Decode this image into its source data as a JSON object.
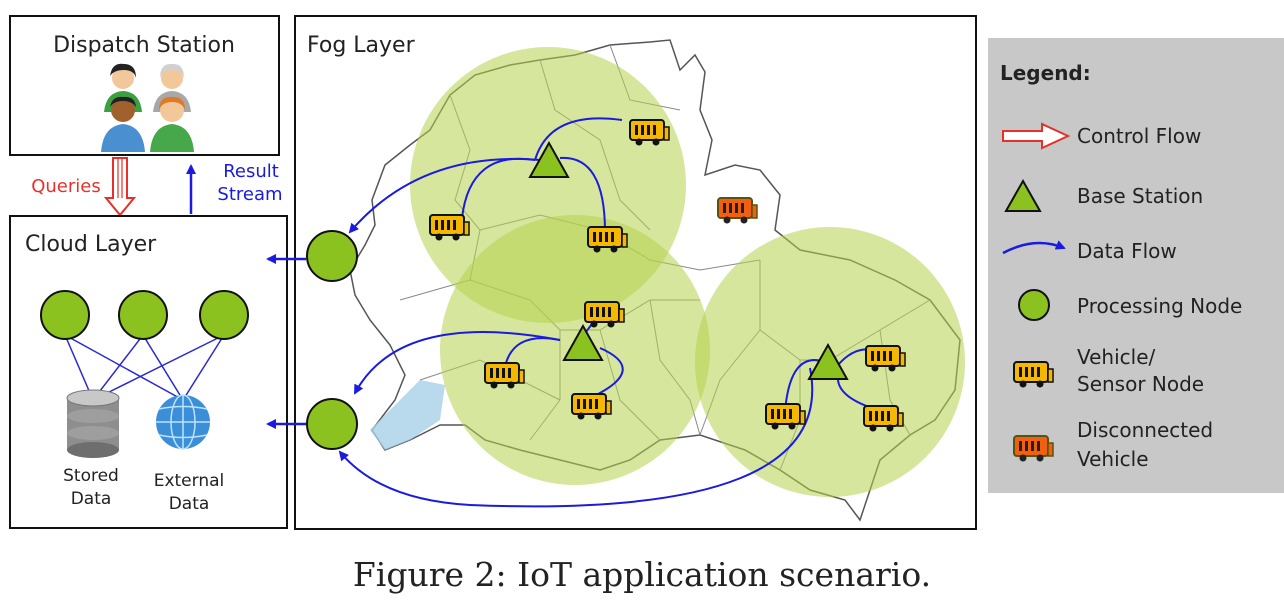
{
  "dispatch": {
    "title": "Dispatch Station"
  },
  "links": {
    "queries": "Queries",
    "result_line1": "Result",
    "result_line2": "Stream"
  },
  "cloud": {
    "title": "Cloud Layer",
    "stored_line1": "Stored",
    "stored_line2": "Data",
    "external_line1": "External",
    "external_line2": "Data"
  },
  "fog": {
    "title": "Fog Layer"
  },
  "legend": {
    "title": "Legend:",
    "items": [
      {
        "lines": [
          "Control Flow"
        ]
      },
      {
        "lines": [
          "Base Station"
        ]
      },
      {
        "lines": [
          "Data Flow"
        ]
      },
      {
        "lines": [
          "Processing Node"
        ]
      },
      {
        "lines": [
          "Vehicle/",
          "Sensor Node"
        ]
      },
      {
        "lines": [
          "Disconnected",
          "Vehicle"
        ]
      }
    ]
  },
  "caption": "Figure 2: IoT application scenario.",
  "colors": {
    "node_green": "#8cc21f",
    "coverage_green": "#b4d24c",
    "flow_blue": "#1a1ae0",
    "control_red": "#e8302a",
    "vehicle_yellow": "#f5b800",
    "vehicle_orange": "#f06010",
    "legend_bg": "#c8c8c8"
  }
}
